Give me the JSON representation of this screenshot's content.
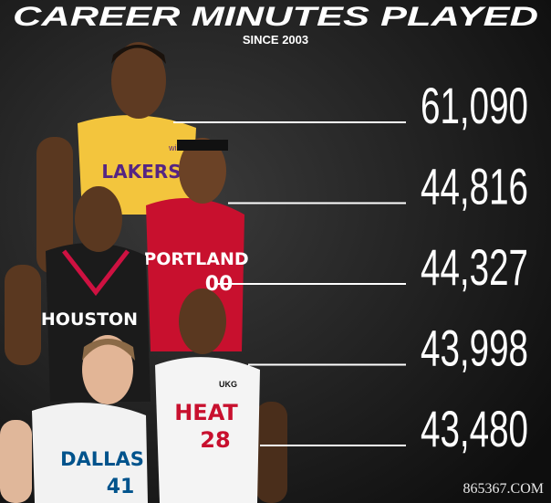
{
  "header": {
    "title": "CAREER MINUTES PLAYED",
    "subtitle": "SINCE 2003"
  },
  "entries": [
    {
      "minutes": "61,090"
    },
    {
      "minutes": "44,816"
    },
    {
      "minutes": "44,327"
    },
    {
      "minutes": "43,998"
    },
    {
      "minutes": "43,480"
    }
  ],
  "players": [
    {
      "team": "LAKERS",
      "sponsor": "wish"
    },
    {
      "team": "PORTLAND",
      "number": "00"
    },
    {
      "team": "HOUSTON"
    },
    {
      "team": "HEAT",
      "number": "28",
      "sponsor": "UKG"
    },
    {
      "team": "DALLAS",
      "number": "41"
    }
  ],
  "watermark": "865367.COM"
}
